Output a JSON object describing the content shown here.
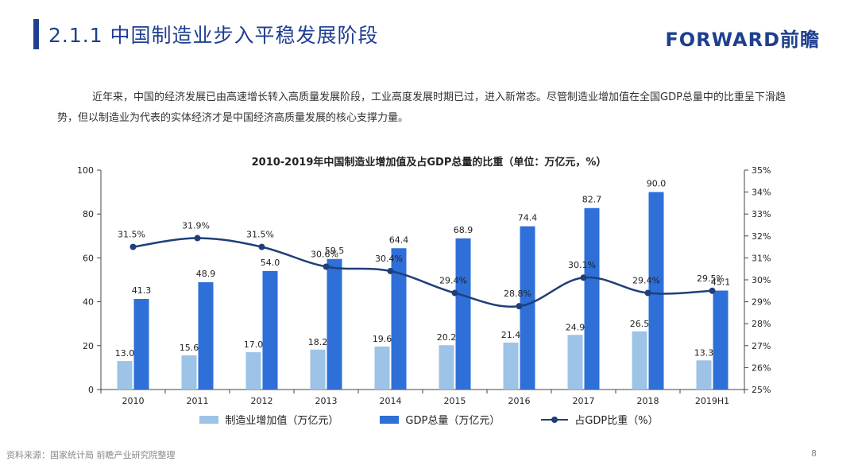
{
  "header": {
    "title": "2.1.1 中国制造业步入平稳发展阶段",
    "logo": "FORWARD前瞻"
  },
  "intro": "近年来，中国的经济发展已由高速增长转入高质量发展阶段，工业高度发展时期已过，进入新常态。尽管制造业增加值在全国GDP总量中的比重呈下滑趋势，但以制造业为代表的实体经济才是中国经济高质量发展的核心支撑力量。",
  "footer": {
    "source": "资料来源：国家统计局 前瞻产业研究院整理",
    "page": "8"
  },
  "colors": {
    "accent": "#1f3f8f",
    "bar_light": "#9dc3e6",
    "bar_dark": "#2e6fd8",
    "line": "#1f3f7a"
  },
  "chart_data": {
    "type": "bar",
    "title": "2010-2019年中国制造业增加值及占GDP总量的比重（单位：万亿元，%）",
    "categories": [
      "2010",
      "2011",
      "2012",
      "2013",
      "2014",
      "2015",
      "2016",
      "2017",
      "2018",
      "2019H1"
    ],
    "series": [
      {
        "name": "制造业增加值（万亿元）",
        "type": "bar",
        "axis": "left",
        "values": [
          13.0,
          15.6,
          17.0,
          18.2,
          19.6,
          20.2,
          21.4,
          24.9,
          26.5,
          13.3
        ]
      },
      {
        "name": "GDP总量（万亿元）",
        "type": "bar",
        "axis": "left",
        "values": [
          41.3,
          48.9,
          54.0,
          59.5,
          64.4,
          68.9,
          74.4,
          82.7,
          90.0,
          45.1
        ]
      },
      {
        "name": "占GDP比重（%）",
        "type": "line",
        "axis": "right",
        "values": [
          31.5,
          31.9,
          31.5,
          30.6,
          30.4,
          29.4,
          28.8,
          30.1,
          29.4,
          29.5
        ]
      }
    ],
    "y_left": {
      "min": 0,
      "max": 100,
      "ticks": [
        0,
        20,
        40,
        60,
        80,
        100
      ]
    },
    "y_right": {
      "min": 25,
      "max": 35,
      "ticks": [
        "25%",
        "26%",
        "27%",
        "28%",
        "29%",
        "30%",
        "31%",
        "32%",
        "33%",
        "34%",
        "35%"
      ]
    },
    "bar_labels": {
      "light": [
        "13.0",
        "15.6",
        "17.0",
        "18.2",
        "19.6",
        "20.2",
        "21.4",
        "24.9",
        "26.5",
        "13.3"
      ],
      "dark": [
        "41.3",
        "48.9",
        "54.0",
        "59.5",
        "64.4",
        "68.9",
        "74.4",
        "82.7",
        "90.0",
        "45.1"
      ],
      "line": [
        "31.5%",
        "31.9%",
        "31.5%",
        "30.6%",
        "30.4%",
        "29.4%",
        "28.8%",
        "30.1%",
        "29.4%",
        "29.5%"
      ]
    },
    "legend": [
      "制造业增加值（万亿元）",
      "GDP总量（万亿元）",
      "占GDP比重（%）"
    ],
    "legend_position": "bottom",
    "grid": false
  }
}
